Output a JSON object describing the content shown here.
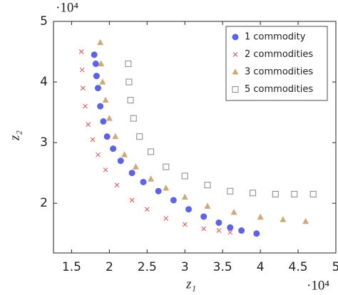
{
  "chart_data": {
    "type": "scatter",
    "x_label": "z₁",
    "y_label": "z₂",
    "x_multiplier": "·10⁴",
    "y_multiplier": "·10⁴",
    "xlim": [
      1.26,
      5
    ],
    "ylim": [
      1.18,
      5
    ],
    "xticks": [
      1.5,
      2,
      2.5,
      3,
      3.5,
      4,
      4.5,
      5
    ],
    "yticks": [
      2,
      3,
      4,
      5
    ],
    "grid": false,
    "legend": "upper right",
    "series": [
      {
        "name": "1 commodity",
        "color": "#5b64e6",
        "marker": "circle",
        "x": [
          1.8,
          1.82,
          1.83,
          1.85,
          1.88,
          1.92,
          1.97,
          2.05,
          2.15,
          2.3,
          2.45,
          2.65,
          2.85,
          3.05,
          3.25,
          3.45,
          3.6,
          3.75,
          3.95
        ],
        "values": [
          4.45,
          4.3,
          4.1,
          3.9,
          3.6,
          3.35,
          3.1,
          2.9,
          2.7,
          2.5,
          2.35,
          2.2,
          2.05,
          1.9,
          1.78,
          1.68,
          1.6,
          1.55,
          1.5
        ]
      },
      {
        "name": "2 commodities",
        "color": "#e05050",
        "marker": "x",
        "x": [
          1.63,
          1.64,
          1.65,
          1.68,
          1.72,
          1.78,
          1.85,
          1.95,
          2.1,
          2.3,
          2.5,
          2.75,
          3.0,
          3.25,
          3.45,
          3.6
        ],
        "values": [
          4.5,
          4.2,
          3.9,
          3.6,
          3.3,
          3.05,
          2.8,
          2.55,
          2.3,
          2.05,
          1.9,
          1.75,
          1.65,
          1.58,
          1.55,
          1.52
        ]
      },
      {
        "name": "3 commodities",
        "color": "#d0a87a",
        "marker": "triangle",
        "x": [
          1.88,
          1.89,
          1.91,
          1.95,
          2.0,
          2.08,
          2.2,
          2.35,
          2.55,
          2.75,
          3.0,
          3.3,
          3.65,
          4.0,
          4.3,
          4.6
        ],
        "values": [
          4.65,
          4.3,
          4.0,
          3.7,
          3.4,
          3.1,
          2.8,
          2.6,
          2.4,
          2.25,
          2.1,
          1.95,
          1.85,
          1.77,
          1.73,
          1.7
        ]
      },
      {
        "name": "5 commodities",
        "color": "#888888",
        "marker": "square",
        "x": [
          2.25,
          2.26,
          2.28,
          2.32,
          2.4,
          2.55,
          2.75,
          3.0,
          3.3,
          3.6,
          3.9,
          4.2,
          4.45,
          4.7
        ],
        "values": [
          4.3,
          4.0,
          3.7,
          3.4,
          3.1,
          2.85,
          2.6,
          2.45,
          2.3,
          2.2,
          2.17,
          2.15,
          2.15,
          2.15
        ]
      }
    ]
  }
}
